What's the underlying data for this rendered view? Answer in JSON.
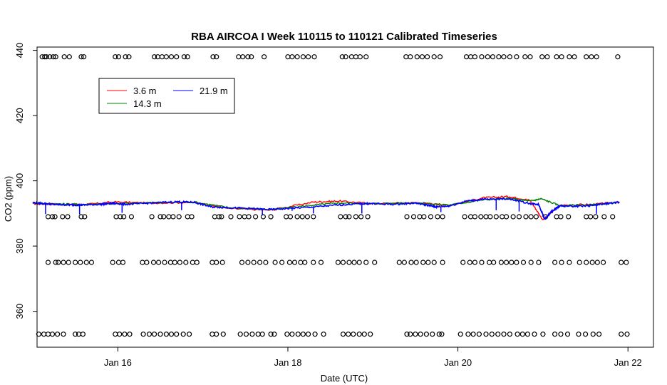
{
  "chart_data": {
    "type": "line",
    "title": "RBA AIRCOA I  Week 110115 to 110121  Calibrated Timeseries",
    "xlabel": "Date (UTC)",
    "ylabel": "CO2 (ppm)",
    "x_unit": "days (January 2011)",
    "xlim": [
      15.05,
      22.3
    ],
    "ylim": [
      349,
      441
    ],
    "x_ticks": [
      {
        "value": 16,
        "label": "Jan 16"
      },
      {
        "value": 18,
        "label": "Jan 18"
      },
      {
        "value": 20,
        "label": "Jan 20"
      },
      {
        "value": 22,
        "label": "Jan 22"
      }
    ],
    "y_ticks": [
      {
        "value": 360,
        "label": "360"
      },
      {
        "value": 380,
        "label": "380"
      },
      {
        "value": 400,
        "label": "400"
      },
      {
        "value": 420,
        "label": "420"
      },
      {
        "value": 440,
        "label": "440"
      }
    ],
    "legend": {
      "position": "top-left",
      "entries": [
        {
          "label": "3.6 m",
          "color": "#ff0000"
        },
        {
          "label": "21.9 m",
          "color": "#0000ff"
        },
        {
          "label": "14.3 m",
          "color": "#008000"
        }
      ]
    },
    "series": [
      {
        "name": "3.6 m",
        "color": "#ff0000",
        "x": [
          15.0,
          15.3,
          15.6,
          15.95,
          16.4,
          16.9,
          17.3,
          17.8,
          18.3,
          18.6,
          19.0,
          19.5,
          19.9,
          20.3,
          20.6,
          20.85,
          21.0,
          21.2,
          21.6,
          21.9
        ],
        "y": [
          393.0,
          392.8,
          392.7,
          393.5,
          393.2,
          393.4,
          391.5,
          391.0,
          393.5,
          393.8,
          393.0,
          393.3,
          392.5,
          394.8,
          395.2,
          394.0,
          388.0,
          392.5,
          392.8,
          393.5
        ]
      },
      {
        "name": "14.3 m",
        "color": "#008000",
        "x": [
          15.0,
          15.3,
          15.6,
          15.95,
          16.4,
          16.9,
          17.3,
          17.8,
          18.3,
          18.6,
          19.0,
          19.5,
          19.9,
          20.3,
          20.6,
          20.85,
          20.98,
          21.2,
          21.6,
          21.9
        ],
        "y": [
          393.2,
          392.9,
          392.8,
          393.0,
          393.3,
          393.5,
          391.8,
          391.2,
          392.6,
          393.2,
          393.0,
          393.3,
          392.6,
          394.2,
          394.6,
          393.8,
          394.5,
          392.4,
          392.7,
          393.3
        ]
      },
      {
        "name": "21.9 m",
        "color": "#0000ff",
        "x": [
          15.0,
          15.15,
          15.3,
          15.45,
          15.6,
          15.8,
          15.95,
          16.1,
          16.4,
          16.7,
          16.9,
          17.1,
          17.3,
          17.55,
          17.8,
          18.05,
          18.3,
          18.6,
          18.85,
          19.0,
          19.25,
          19.5,
          19.65,
          19.75,
          19.9,
          20.1,
          20.3,
          20.6,
          20.85,
          20.95,
          21.02,
          21.1,
          21.2,
          21.4,
          21.6,
          21.75,
          21.9
        ],
        "y": [
          393.3,
          393.0,
          392.7,
          392.6,
          392.6,
          392.8,
          393.1,
          392.8,
          393.2,
          393.6,
          393.4,
          392.0,
          391.8,
          391.5,
          391.2,
          391.6,
          392.0,
          392.6,
          393.0,
          393.0,
          392.8,
          393.2,
          392.5,
          392.0,
          392.3,
          393.8,
          394.3,
          394.5,
          393.0,
          392.8,
          388.2,
          390.5,
          392.3,
          392.2,
          392.5,
          393.0,
          393.4
        ]
      }
    ],
    "spikes": [
      {
        "x": 15.15,
        "y": 389.8
      },
      {
        "x": 15.55,
        "y": 389.7
      },
      {
        "x": 16.05,
        "y": 390.2
      },
      {
        "x": 16.75,
        "y": 391.0
      },
      {
        "x": 17.7,
        "y": 389.4
      },
      {
        "x": 18.05,
        "y": 390.8
      },
      {
        "x": 18.3,
        "y": 390.0
      },
      {
        "x": 18.87,
        "y": 390.0
      },
      {
        "x": 19.8,
        "y": 390.4
      },
      {
        "x": 20.45,
        "y": 391.0
      },
      {
        "x": 20.72,
        "y": 390.6
      },
      {
        "x": 21.05,
        "y": 388.8
      },
      {
        "x": 21.63,
        "y": 389.9
      }
    ],
    "calibration_points": {
      "marker": "open-circle",
      "levels": [
        {
          "y": 438,
          "x": [
            15.11,
            15.14,
            15.16,
            15.2,
            15.24,
            15.27,
            15.37,
            15.43,
            15.57,
            15.6,
            15.97,
            16.01,
            16.09,
            16.13,
            16.43,
            16.47,
            16.52,
            16.57,
            16.63,
            16.69,
            16.78,
            16.82,
            17.12,
            17.16,
            17.42,
            17.47,
            17.53,
            17.57,
            17.72,
            18.0,
            18.05,
            18.11,
            18.18,
            18.24,
            18.31,
            18.64,
            18.68,
            18.75,
            18.8,
            18.85,
            18.92,
            19.39,
            19.44,
            19.52,
            19.58,
            19.64,
            19.72,
            19.79,
            20.1,
            20.15,
            20.2,
            20.28,
            20.35,
            20.41,
            20.48,
            20.54,
            20.61,
            20.69,
            20.79,
            20.85,
            20.99,
            21.05,
            21.16,
            21.22,
            21.31,
            21.37,
            21.51,
            21.57,
            21.63,
            21.88
          ]
        },
        {
          "y": 389,
          "x": [
            15.18,
            15.23,
            15.26,
            15.35,
            15.41,
            15.57,
            15.61,
            15.98,
            16.03,
            16.07,
            16.16,
            16.4,
            16.5,
            16.54,
            16.6,
            16.65,
            16.72,
            16.82,
            16.87,
            17.14,
            17.19,
            17.22,
            17.33,
            17.43,
            17.49,
            17.54,
            17.62,
            17.71,
            17.8,
            17.98,
            18.03,
            18.11,
            18.17,
            18.23,
            18.3,
            18.62,
            18.68,
            18.72,
            18.8,
            18.86,
            18.94,
            19.4,
            19.48,
            19.55,
            19.6,
            19.68,
            19.76,
            19.82,
            20.08,
            20.15,
            20.2,
            20.27,
            20.33,
            20.38,
            20.45,
            20.52,
            20.57,
            20.65,
            20.72,
            20.8,
            20.86,
            20.92,
            21.03,
            21.16,
            21.21,
            21.3,
            21.51,
            21.56,
            21.62,
            21.72,
            21.82
          ]
        },
        {
          "y": 375,
          "x": [
            15.18,
            15.27,
            15.3,
            15.36,
            15.42,
            15.5,
            15.56,
            15.63,
            15.69,
            15.94,
            16.01,
            16.06,
            16.29,
            16.34,
            16.42,
            16.48,
            16.55,
            16.62,
            16.67,
            16.73,
            16.8,
            16.88,
            16.93,
            17.11,
            17.16,
            17.23,
            17.46,
            17.53,
            17.6,
            17.67,
            17.74,
            17.85,
            17.93,
            18.02,
            18.08,
            18.15,
            18.2,
            18.3,
            18.39,
            18.59,
            18.65,
            18.72,
            18.78,
            18.84,
            18.92,
            19.02,
            19.31,
            19.37,
            19.45,
            19.51,
            19.59,
            19.65,
            19.72,
            19.82,
            20.06,
            20.14,
            20.2,
            20.28,
            20.37,
            20.42,
            20.51,
            20.57,
            20.63,
            20.69,
            20.77,
            20.86,
            20.95,
            21.14,
            21.22,
            21.31,
            21.43,
            21.51,
            21.58,
            21.64,
            21.71,
            21.92,
            21.98
          ]
        },
        {
          "y": 353,
          "x": [
            15.07,
            15.13,
            15.18,
            15.23,
            15.29,
            15.36,
            15.5,
            15.54,
            15.59,
            15.97,
            16.02,
            16.08,
            16.14,
            16.3,
            16.37,
            16.43,
            16.5,
            16.57,
            16.63,
            16.69,
            16.77,
            16.84,
            17.11,
            17.16,
            17.24,
            17.44,
            17.51,
            17.58,
            17.65,
            17.7,
            17.8,
            17.84,
            17.99,
            18.05,
            18.12,
            18.18,
            18.24,
            18.32,
            18.42,
            18.65,
            18.71,
            18.77,
            18.84,
            18.9,
            18.97,
            19.4,
            19.44,
            19.5,
            19.56,
            19.63,
            19.7,
            19.78,
            19.81,
            20.03,
            20.12,
            20.18,
            20.25,
            20.33,
            20.4,
            20.47,
            20.54,
            20.61,
            20.7,
            20.76,
            20.82,
            20.9,
            21.0,
            21.14,
            21.21,
            21.29,
            21.42,
            21.5,
            21.59,
            21.66,
            21.92,
            21.99
          ]
        }
      ]
    }
  }
}
